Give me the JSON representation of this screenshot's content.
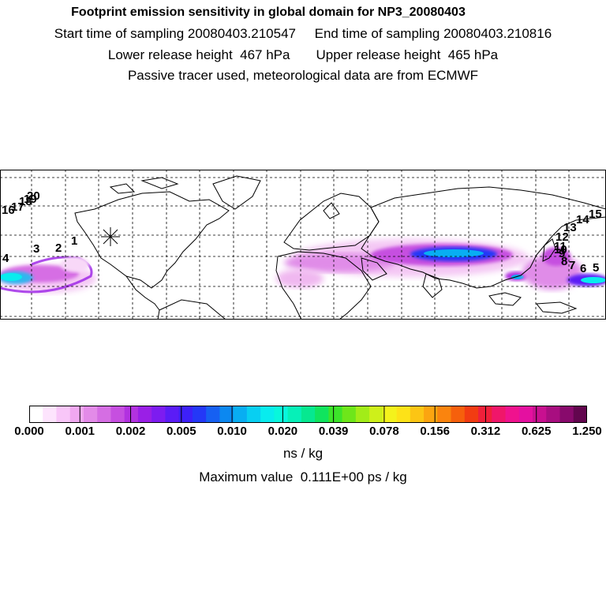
{
  "header": {
    "title": "Footprint emission sensitivity in global domain for NP3_20080403",
    "line2": "Start time of sampling 20080403.210547     End time of sampling 20080403.210816",
    "line3": "Lower release height  467 hPa       Upper release height  465 hPa",
    "line4": "Passive tracer used, meteorological data are from ECMWF"
  },
  "map": {
    "release_marker": "asterisk-icon",
    "point_labels": [
      "1",
      "2",
      "3",
      "4",
      "5",
      "6",
      "7",
      "8",
      "9",
      "10",
      "11",
      "12",
      "13",
      "14",
      "15",
      "16",
      "17",
      "18",
      "19",
      "20"
    ]
  },
  "colorbar": {
    "colors": [
      "#ffffff",
      "#fde4fd",
      "#f8c6f8",
      "#f0a8f0",
      "#e38be8",
      "#d56ee3",
      "#c64fe0",
      "#b232e0",
      "#9a1fe6",
      "#7d1cf0",
      "#5b1cf6",
      "#3d20f8",
      "#2438f7",
      "#1660f2",
      "#0c88f0",
      "#08aef2",
      "#08cff2",
      "#08ecee",
      "#08f7dc",
      "#06f0b8",
      "#06e890",
      "#10e45e",
      "#3ce42a",
      "#6ee61a",
      "#a2ec18",
      "#cef01a",
      "#f4f21c",
      "#fde218",
      "#fcc514",
      "#fba510",
      "#fa840e",
      "#f6600c",
      "#f23c12",
      "#f0203a",
      "#f0166a",
      "#f0128e",
      "#e410a0",
      "#c81090",
      "#a80e80",
      "#880a6c",
      "#62064e"
    ],
    "tick_labels": [
      "0.000",
      "0.001",
      "0.002",
      "0.005",
      "0.010",
      "0.020",
      "0.039",
      "0.078",
      "0.156",
      "0.312",
      "0.625",
      "1.250"
    ],
    "units": "ns / kg"
  },
  "footer": {
    "max_value": "Maximum value  0.111E+00 ps / kg"
  }
}
